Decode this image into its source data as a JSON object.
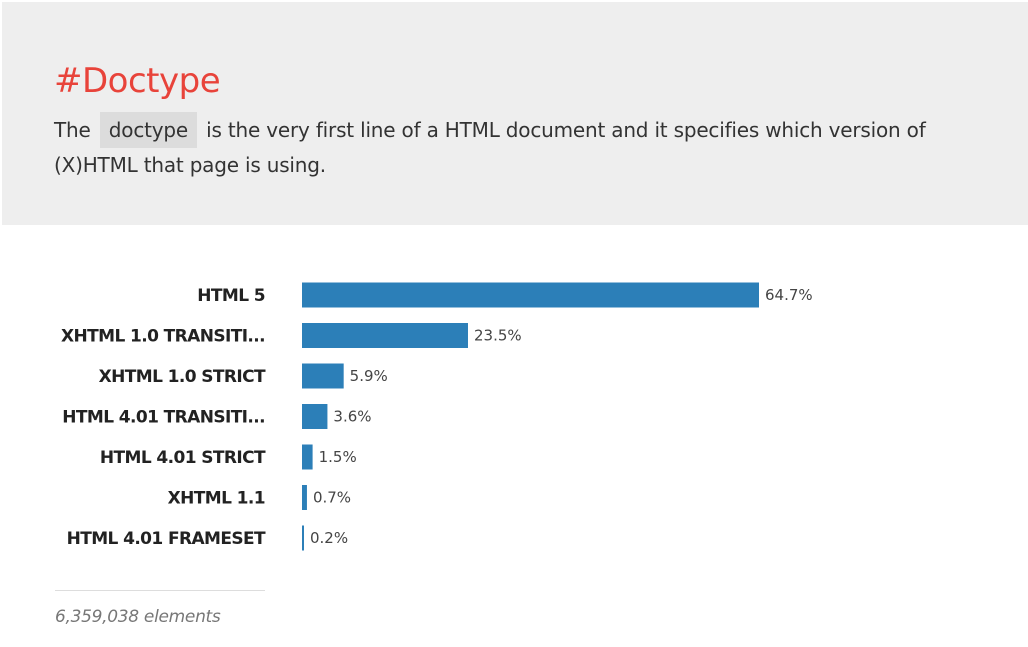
{
  "section": {
    "title": "#Doctype",
    "description": {
      "before": "The",
      "code": "doctype",
      "after": "is the very first line of a HTML document and it specifies which version of (X)HTML that page is using."
    }
  },
  "chart_data": {
    "type": "bar",
    "orientation": "horizontal",
    "categories": [
      "HTML 5",
      "XHTML 1.0 TRANSITI...",
      "XHTML 1.0 STRICT",
      "HTML 4.01 TRANSITI...",
      "HTML 4.01 STRICT",
      "XHTML 1.1",
      "HTML 4.01 FRAMESET"
    ],
    "values": [
      64.7,
      23.5,
      5.9,
      3.6,
      1.5,
      0.7,
      0.2
    ],
    "value_labels": [
      "64.7%",
      "23.5%",
      "5.9%",
      "3.6%",
      "1.5%",
      "0.7%",
      "0.2%"
    ],
    "bar_color": "#2c7fb8",
    "grid": false
  },
  "footer": {
    "count": "6,359,038 elements"
  }
}
